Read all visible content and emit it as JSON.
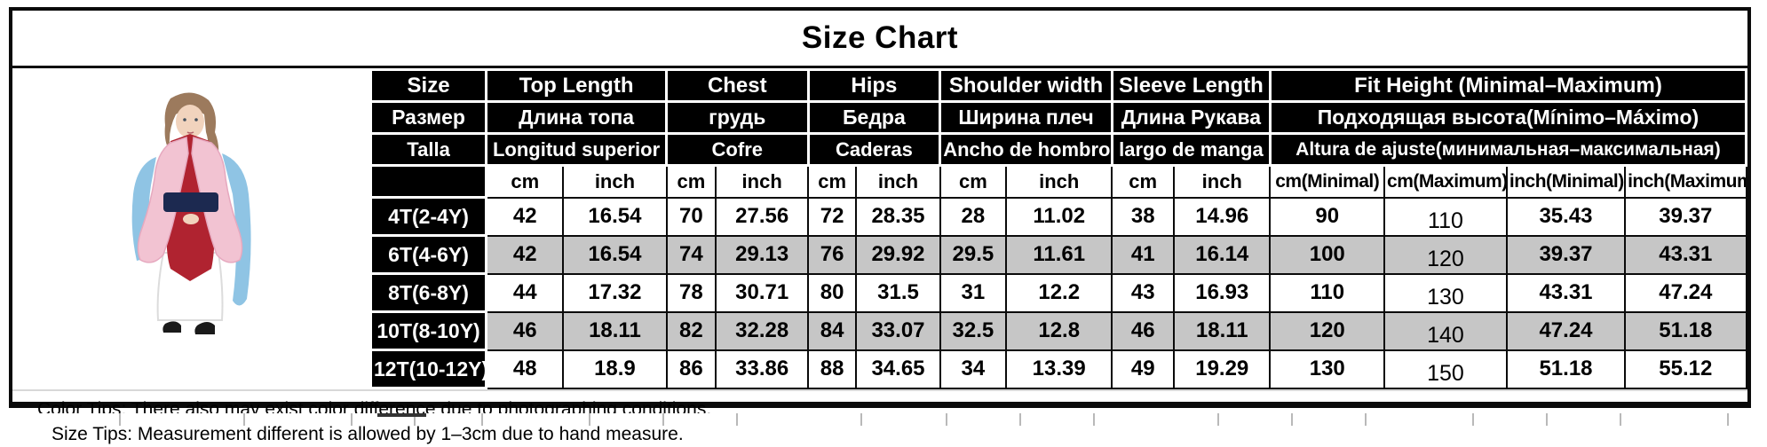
{
  "title": "Size Chart",
  "table": {
    "header_groups": [
      {
        "en": "Size",
        "ru": "Размер",
        "es": "Talla"
      },
      {
        "en": "Top Length",
        "ru": "Длина топа",
        "es": "Longitud superior"
      },
      {
        "en": "Chest",
        "ru": "грудь",
        "es": "Cofre"
      },
      {
        "en": "Hips",
        "ru": "Бедра",
        "es": "Caderas"
      },
      {
        "en": "Shoulder width",
        "ru": "Ширина плеч",
        "es": "Ancho de hombro"
      },
      {
        "en": "Sleeve Length",
        "ru": "Длина Рукава",
        "es": "largo de manga"
      },
      {
        "en": "Fit Height (Minimal–Maximum)",
        "ru": "Подходящая высота(Mínimo–Máximo)",
        "es": "Altura de ajuste(минимальная–максимальная)"
      }
    ],
    "units": [
      "cm",
      "inch",
      "cm",
      "inch",
      "cm",
      "inch",
      "cm",
      "inch",
      "cm",
      "inch",
      "cm(Minimal)",
      "cm(Maximum)",
      "inch(Minimal)",
      "inch(Maximum)"
    ],
    "rows": [
      {
        "size": "4T(2-4Y)",
        "values": [
          "42",
          "16.54",
          "70",
          "27.56",
          "72",
          "28.35",
          "28",
          "11.02",
          "38",
          "14.96",
          "90",
          "110",
          "35.43",
          "39.37"
        ]
      },
      {
        "size": "6T(4-6Y)",
        "values": [
          "42",
          "16.54",
          "74",
          "29.13",
          "76",
          "29.92",
          "29.5",
          "11.61",
          "41",
          "16.14",
          "100",
          "120",
          "39.37",
          "43.31"
        ]
      },
      {
        "size": "8T(6-8Y)",
        "values": [
          "44",
          "17.32",
          "78",
          "30.71",
          "80",
          "31.5",
          "31",
          "12.2",
          "43",
          "16.93",
          "110",
          "130",
          "43.31",
          "47.24"
        ]
      },
      {
        "size": "10T(8-10Y)",
        "values": [
          "46",
          "18.11",
          "82",
          "32.28",
          "84",
          "33.07",
          "32.5",
          "12.8",
          "46",
          "18.11",
          "120",
          "140",
          "47.24",
          "51.18"
        ]
      },
      {
        "size": "12T(10-12Y)",
        "values": [
          "48",
          "18.9",
          "86",
          "33.86",
          "88",
          "34.65",
          "34",
          "13.39",
          "49",
          "19.29",
          "130",
          "150",
          "51.18",
          "55.12"
        ]
      }
    ]
  },
  "tips": {
    "color_tip": "Color Tips: There also may exist color difference due to photographing conditions.",
    "size_tip": "Size Tips: Measurement different is allowed by 1–3cm due to hand measure."
  },
  "colors": {
    "header_bg": "#000000",
    "header_text": "#ffffff",
    "alt_row": "#c6c6c6",
    "table_border": "#0a0a0a",
    "costume": {
      "pink": "#f2c3d2",
      "pink_shade": "#e6a9bf",
      "red": "#b02330",
      "navy": "#1c2950",
      "blue": "#8fc4e4",
      "hair": "#9c7a5d",
      "skin": "#f1d3bd",
      "white": "#ffffff",
      "black": "#1a1a1a"
    }
  }
}
